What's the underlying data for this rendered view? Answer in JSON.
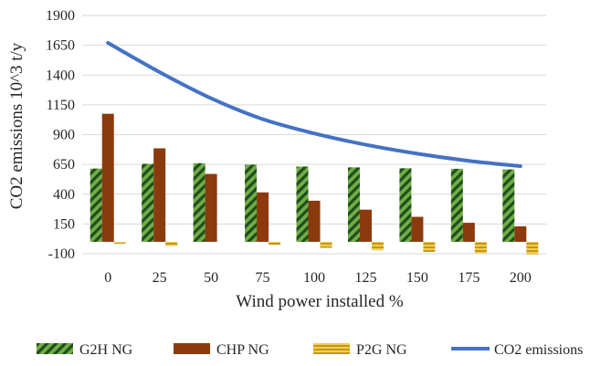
{
  "chart_data": {
    "type": "bar",
    "xlabel": "Wind power installed %",
    "ylabel": "CO2 emissions  10^3 t/y",
    "ylim": [
      -100,
      1900
    ],
    "yticks": [
      "1900",
      "1650",
      "1400",
      "1150",
      "900",
      "650",
      "400",
      "150",
      "-100"
    ],
    "categories": [
      "0",
      "25",
      "50",
      "75",
      "100",
      "125",
      "150",
      "175",
      "200"
    ],
    "grid": true,
    "legend_position": "bottom",
    "series": [
      {
        "name": "G2H NG",
        "kind": "bar",
        "color": "#70ad47",
        "pattern": "diagonal-stripes",
        "values": [
          615,
          655,
          660,
          648,
          632,
          625,
          618,
          613,
          608
        ]
      },
      {
        "name": "CHP NG",
        "kind": "bar",
        "color": "#8b3a0e",
        "pattern": "solid",
        "values": [
          1075,
          785,
          570,
          415,
          345,
          270,
          210,
          160,
          130
        ]
      },
      {
        "name": "P2G NG",
        "kind": "bar",
        "color": "#e5b21c",
        "pattern": "horizontal-stripes",
        "values": [
          -15,
          -35,
          0,
          -25,
          -50,
          -70,
          -85,
          -95,
          -105
        ]
      },
      {
        "name": "CO2 emissions",
        "kind": "line",
        "color": "#4472c4",
        "values": [
          1670,
          1425,
          1205,
          1030,
          910,
          815,
          740,
          680,
          635
        ]
      }
    ]
  }
}
